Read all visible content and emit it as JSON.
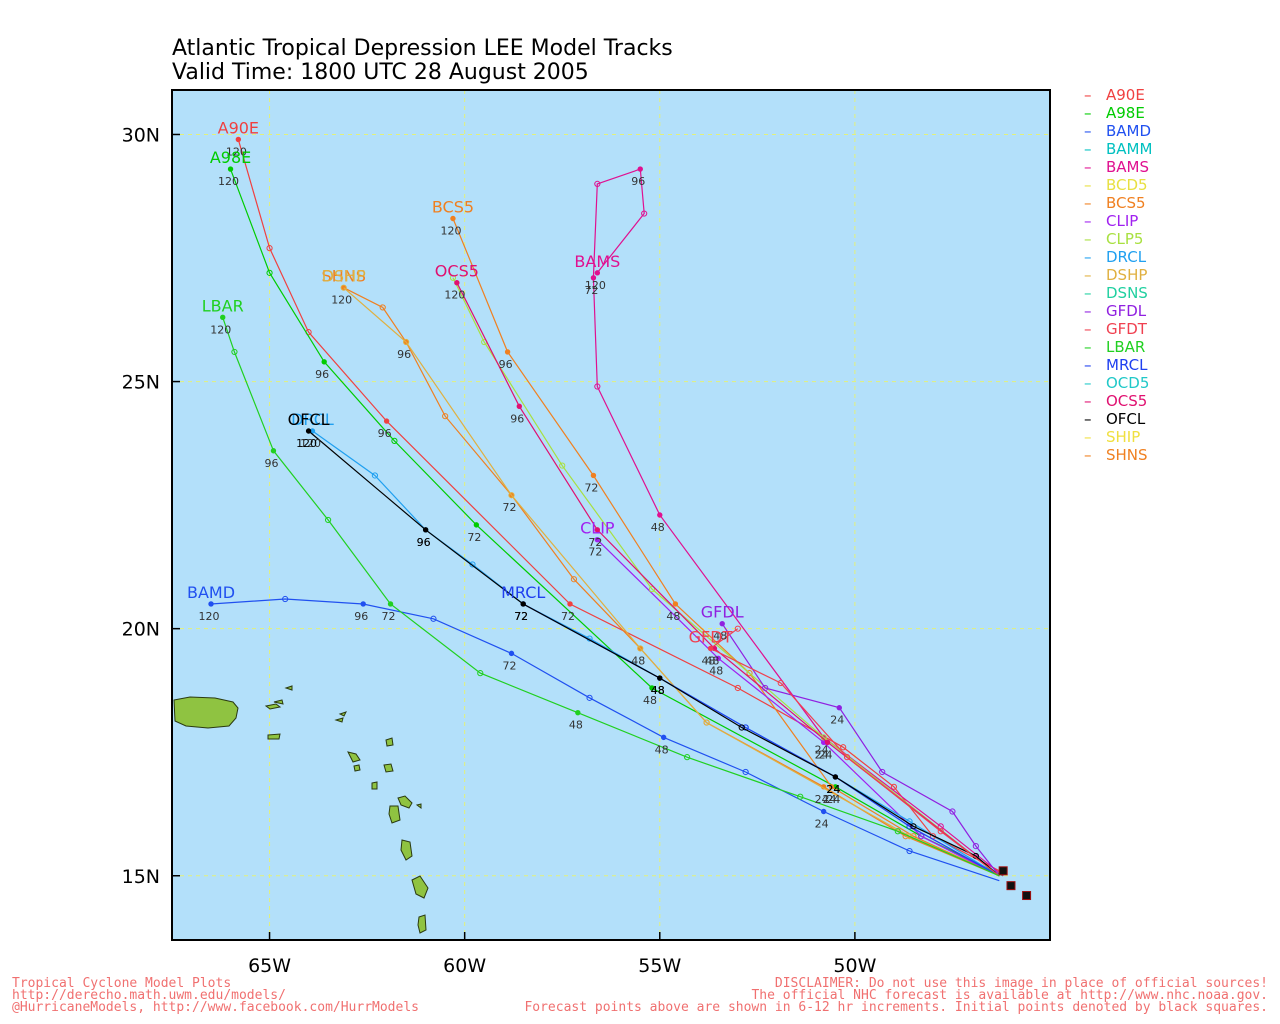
{
  "title": "Atlantic Tropical Depression LEE Model Tracks",
  "subtitle": "Valid Time: 1800 UTC 28 August 2005",
  "colors": {
    "ocean": "#b3e0fa",
    "land": "#8fc341",
    "grid": "#e3f07a",
    "frame": "#000000"
  },
  "axes": {
    "lon_ticks": [
      "65W",
      "60W",
      "55W",
      "50W"
    ],
    "lat_ticks": [
      "30N",
      "25N",
      "20N",
      "15N"
    ]
  },
  "legend": [
    {
      "name": "A90E",
      "color": "#f04040"
    },
    {
      "name": "A98E",
      "color": "#00cc00"
    },
    {
      "name": "BAMD",
      "color": "#2050f0"
    },
    {
      "name": "BAMM",
      "color": "#00c0c0"
    },
    {
      "name": "BAMS",
      "color": "#e01090"
    },
    {
      "name": "BCD5",
      "color": "#e8e040"
    },
    {
      "name": "BCS5",
      "color": "#f08020"
    },
    {
      "name": "CLIP",
      "color": "#a020f0"
    },
    {
      "name": "CLP5",
      "color": "#a8e040"
    },
    {
      "name": "DRCL",
      "color": "#20a0f0"
    },
    {
      "name": "DSHP",
      "color": "#e0b040"
    },
    {
      "name": "DSNS",
      "color": "#20d0a0"
    },
    {
      "name": "GFDL",
      "color": "#9020e0"
    },
    {
      "name": "GFDT",
      "color": "#f04050"
    },
    {
      "name": "LBAR",
      "color": "#20d020"
    },
    {
      "name": "MRCL",
      "color": "#2040f0"
    },
    {
      "name": "OCD5",
      "color": "#20c8c8"
    },
    {
      "name": "OCS5",
      "color": "#e01070"
    },
    {
      "name": "OFCL",
      "color": "#000000"
    },
    {
      "name": "SHIP",
      "color": "#f0e040"
    },
    {
      "name": "SHNS",
      "color": "#f08020"
    }
  ],
  "chart_data": {
    "type": "line",
    "xlim": [
      -67.5,
      -45
    ],
    "ylim": [
      13.7,
      30.9
    ],
    "grid": true,
    "series": [
      {
        "name": "A90E",
        "color": "#f04040",
        "label": "A90E",
        "label_at": 120,
        "points": [
          {
            "x": -46.3,
            "y": 15.1
          },
          {
            "x": -48.0,
            "y": 15.8
          },
          {
            "x": -49.0,
            "y": 16.8
          },
          {
            "x": -50.3,
            "y": 17.6
          },
          {
            "x": -53.0,
            "y": 18.8
          },
          {
            "x": -57.3,
            "y": 20.5,
            "h": 72
          },
          {
            "x": -62.0,
            "y": 24.2,
            "h": 96
          },
          {
            "x": -64.0,
            "y": 26.0
          },
          {
            "x": -65.0,
            "y": 27.7
          },
          {
            "x": -65.8,
            "y": 29.9,
            "h": 120
          }
        ]
      },
      {
        "name": "A98E",
        "color": "#00cc00",
        "label": "A98E",
        "label_at": 120,
        "points": [
          {
            "x": -46.2,
            "y": 15.0
          },
          {
            "x": -48.3,
            "y": 15.8
          },
          {
            "x": -50.5,
            "y": 16.8,
            "h": 24
          },
          {
            "x": -55.2,
            "y": 18.8,
            "h": 48
          },
          {
            "x": -59.7,
            "y": 22.1,
            "h": 72
          },
          {
            "x": -61.8,
            "y": 23.8
          },
          {
            "x": -63.6,
            "y": 25.4,
            "h": 96
          },
          {
            "x": -65.0,
            "y": 27.2
          },
          {
            "x": -66.0,
            "y": 29.3,
            "h": 120
          }
        ]
      },
      {
        "name": "BAMD",
        "color": "#2050f0",
        "label": "BAMD",
        "label_at": 120,
        "points": [
          {
            "x": -46.3,
            "y": 14.9
          },
          {
            "x": -48.6,
            "y": 15.5
          },
          {
            "x": -50.8,
            "y": 16.3,
            "h": 24
          },
          {
            "x": -52.8,
            "y": 17.1
          },
          {
            "x": -54.9,
            "y": 17.8,
            "h": 48
          },
          {
            "x": -56.8,
            "y": 18.6
          },
          {
            "x": -58.8,
            "y": 19.5,
            "h": 72
          },
          {
            "x": -60.8,
            "y": 20.2
          },
          {
            "x": -62.6,
            "y": 20.5,
            "h": 96
          },
          {
            "x": -64.6,
            "y": 20.6
          },
          {
            "x": -66.5,
            "y": 20.5,
            "h": 120
          }
        ]
      },
      {
        "name": "BAMS",
        "color": "#e01090",
        "label": "BAMS",
        "label_at": 120,
        "points": [
          {
            "x": -46.2,
            "y": 15.0
          },
          {
            "x": -47.8,
            "y": 16.0
          },
          {
            "x": -50.8,
            "y": 17.8,
            "h": 24
          },
          {
            "x": -55.0,
            "y": 22.3,
            "h": 48
          },
          {
            "x": -56.6,
            "y": 24.9
          },
          {
            "x": -56.7,
            "y": 27.1,
            "h": 72
          },
          {
            "x": -56.6,
            "y": 29.0
          },
          {
            "x": -55.5,
            "y": 29.3,
            "h": 96
          },
          {
            "x": -55.4,
            "y": 28.4
          },
          {
            "x": -56.6,
            "y": 27.2,
            "h": 120
          }
        ]
      },
      {
        "name": "BCS5",
        "color": "#f08020",
        "label": "BCS5",
        "label_at": 120,
        "points": [
          {
            "x": -46.3,
            "y": 15.0
          },
          {
            "x": -48.5,
            "y": 15.8
          },
          {
            "x": -50.6,
            "y": 16.8,
            "h": 24
          },
          {
            "x": -52.7,
            "y": 19.1
          },
          {
            "x": -54.6,
            "y": 20.5,
            "h": 48
          },
          {
            "x": -56.7,
            "y": 23.1,
            "h": 72
          },
          {
            "x": -58.9,
            "y": 25.6,
            "h": 96
          },
          {
            "x": -60.3,
            "y": 28.3,
            "h": 120
          }
        ]
      },
      {
        "name": "SHNS",
        "color": "#f08020",
        "label": "SHNS",
        "label_at": 120,
        "points": [
          {
            "x": -46.3,
            "y": 15.0
          },
          {
            "x": -48.7,
            "y": 15.8
          },
          {
            "x": -50.8,
            "y": 16.8,
            "h": 24
          },
          {
            "x": -53.8,
            "y": 18.1
          },
          {
            "x": -55.5,
            "y": 19.6,
            "h": 48
          },
          {
            "x": -57.2,
            "y": 21.0
          },
          {
            "x": -58.8,
            "y": 22.7,
            "h": 72
          },
          {
            "x": -60.5,
            "y": 24.3
          },
          {
            "x": -61.5,
            "y": 25.8,
            "h": 96
          },
          {
            "x": -62.1,
            "y": 26.5
          },
          {
            "x": -63.1,
            "y": 26.9,
            "h": 120
          }
        ]
      },
      {
        "name": "DSHP",
        "color": "#e0b040",
        "label": "DSHP",
        "label_at": 120,
        "points": [
          {
            "x": -46.3,
            "y": 15.0
          },
          {
            "x": -48.6,
            "y": 15.8
          },
          {
            "x": -53.8,
            "y": 18.1
          },
          {
            "x": -55.5,
            "y": 19.6
          },
          {
            "x": -58.8,
            "y": 22.7
          },
          {
            "x": -61.5,
            "y": 25.8
          },
          {
            "x": -63.1,
            "y": 26.9
          }
        ]
      },
      {
        "name": "CLIP",
        "color": "#a020f0",
        "label": "CLIP",
        "label_at": 72,
        "points": [
          {
            "x": -46.3,
            "y": 15.0
          },
          {
            "x": -48.3,
            "y": 15.8
          },
          {
            "x": -50.8,
            "y": 17.7,
            "h": 24
          },
          {
            "x": -53.5,
            "y": 19.4,
            "h": 48
          },
          {
            "x": -56.6,
            "y": 21.8,
            "h": 72
          }
        ]
      },
      {
        "name": "CLP5",
        "color": "#a8e040",
        "label": "",
        "label_at": 120,
        "points": [
          {
            "x": -46.3,
            "y": 15.0
          },
          {
            "x": -50.8,
            "y": 17.8
          },
          {
            "x": -55.2,
            "y": 20.8
          },
          {
            "x": -57.5,
            "y": 23.3
          },
          {
            "x": -59.5,
            "y": 25.8
          },
          {
            "x": -60.3,
            "y": 27.1
          }
        ]
      },
      {
        "name": "OCS5",
        "color": "#e01070",
        "label": "OCS5",
        "label_at": 120,
        "points": [
          {
            "x": -46.3,
            "y": 15.0
          },
          {
            "x": -50.7,
            "y": 17.7,
            "h": 24
          },
          {
            "x": -53.6,
            "y": 19.6,
            "h": 48
          },
          {
            "x": -56.6,
            "y": 22.0,
            "h": 72
          },
          {
            "x": -58.6,
            "y": 24.5,
            "h": 96
          },
          {
            "x": -60.2,
            "y": 27.0,
            "h": 120
          }
        ]
      },
      {
        "name": "DRCL",
        "color": "#20a0f0",
        "label": "DRCL",
        "label_at": 120,
        "points": [
          {
            "x": -46.3,
            "y": 15.0
          },
          {
            "x": -48.6,
            "y": 16.1
          },
          {
            "x": -50.5,
            "y": 17.0,
            "h": 24
          },
          {
            "x": -52.8,
            "y": 18.0
          },
          {
            "x": -55.0,
            "y": 19.0,
            "h": 48
          },
          {
            "x": -56.8,
            "y": 19.8
          },
          {
            "x": -58.5,
            "y": 20.5,
            "h": 72
          },
          {
            "x": -59.8,
            "y": 21.3
          },
          {
            "x": -61.0,
            "y": 22.0,
            "h": 96
          },
          {
            "x": -62.3,
            "y": 23.1
          },
          {
            "x": -63.9,
            "y": 24.0,
            "h": 120
          }
        ]
      },
      {
        "name": "MRCL",
        "color": "#2040f0",
        "label": "MRCL",
        "label_at": 72,
        "points": [
          {
            "x": -46.3,
            "y": 15.0
          },
          {
            "x": -48.6,
            "y": 16.0
          },
          {
            "x": -50.5,
            "y": 17.0,
            "h": 24
          },
          {
            "x": -52.8,
            "y": 18.0
          },
          {
            "x": -55.0,
            "y": 19.0,
            "h": 48
          },
          {
            "x": -58.5,
            "y": 20.5,
            "h": 72
          }
        ]
      },
      {
        "name": "OFCL",
        "color": "#000000",
        "label": "OFCL",
        "label_at": 120,
        "points": [
          {
            "x": -46.3,
            "y": 15.0
          },
          {
            "x": -46.9,
            "y": 15.4
          },
          {
            "x": -48.5,
            "y": 16.0
          },
          {
            "x": -50.5,
            "y": 17.0,
            "h": 24
          },
          {
            "x": -52.9,
            "y": 18.0
          },
          {
            "x": -55.0,
            "y": 19.0,
            "h": 48
          },
          {
            "x": -58.5,
            "y": 20.5,
            "h": 72
          },
          {
            "x": -61.0,
            "y": 22.0,
            "h": 96
          },
          {
            "x": -64.0,
            "y": 24.0,
            "h": 120
          }
        ]
      },
      {
        "name": "GFDL",
        "color": "#9020e0",
        "label": "GFDL",
        "label_at": 48,
        "points": [
          {
            "x": -46.3,
            "y": 15.0
          },
          {
            "x": -46.9,
            "y": 15.6
          },
          {
            "x": -47.5,
            "y": 16.3
          },
          {
            "x": -49.3,
            "y": 17.1
          },
          {
            "x": -50.4,
            "y": 18.4,
            "h": 24
          },
          {
            "x": -52.3,
            "y": 18.8
          },
          {
            "x": -53.4,
            "y": 20.1,
            "h": 48
          }
        ]
      },
      {
        "name": "GFDT",
        "color": "#f04050",
        "label": "GFDT",
        "label_at": 48,
        "points": [
          {
            "x": -46.3,
            "y": 15.0
          },
          {
            "x": -47.8,
            "y": 15.9
          },
          {
            "x": -50.2,
            "y": 17.4
          },
          {
            "x": -51.9,
            "y": 18.9
          },
          {
            "x": -53.7,
            "y": 19.6,
            "h": 48
          },
          {
            "x": -53.0,
            "y": 20.0
          }
        ]
      },
      {
        "name": "LBAR",
        "color": "#20d020",
        "label": "LBAR",
        "label_at": 120,
        "points": [
          {
            "x": -46.3,
            "y": 15.0
          },
          {
            "x": -48.9,
            "y": 15.9
          },
          {
            "x": -51.4,
            "y": 16.6
          },
          {
            "x": -54.3,
            "y": 17.4
          },
          {
            "x": -57.1,
            "y": 18.3,
            "h": 48
          },
          {
            "x": -59.6,
            "y": 19.1
          },
          {
            "x": -61.9,
            "y": 20.5,
            "h": 72
          },
          {
            "x": -63.5,
            "y": 22.2
          },
          {
            "x": -64.9,
            "y": 23.6,
            "h": 96
          },
          {
            "x": -65.9,
            "y": 25.6
          },
          {
            "x": -66.2,
            "y": 26.3,
            "h": 120
          }
        ]
      }
    ],
    "initial_points": [
      {
        "x": -46.2,
        "y": 15.1
      },
      {
        "x": -46.0,
        "y": 14.8
      },
      {
        "x": -45.6,
        "y": 14.6
      }
    ]
  },
  "footer": {
    "left": [
      "Tropical Cyclone Model Plots",
      "http://derecho.math.uwm.edu/models/",
      "@HurricaneModels, http://www.facebook.com/HurrModels"
    ],
    "right": [
      "DISCLAIMER: Do not use this image in place of official sources!",
      "The official NHC forecast is available at http://www.nhc.noaa.gov.",
      "Forecast points above are shown in 6-12 hr increments. Initial points denoted by black squares."
    ]
  }
}
